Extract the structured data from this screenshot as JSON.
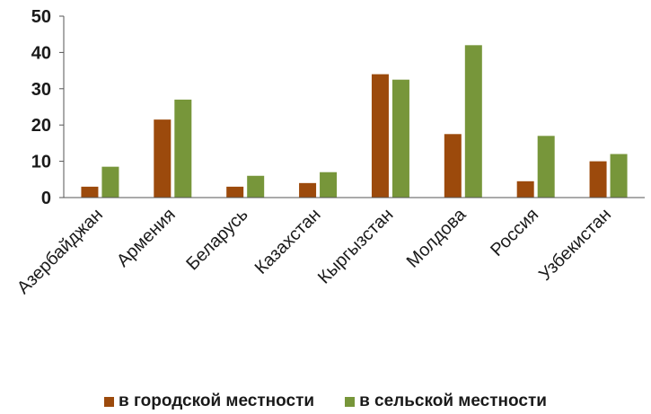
{
  "chart_data": {
    "type": "bar",
    "title": "",
    "xlabel": "",
    "ylabel": "",
    "ylim": [
      0,
      50
    ],
    "yticks": [
      0,
      10,
      20,
      30,
      40,
      50
    ],
    "grid": false,
    "legend_position": "bottom",
    "categories": [
      "Азербайджан",
      "Армения",
      "Беларусь",
      "Казахстан",
      "Кыргызстан",
      "Молдова",
      "Россия",
      "Узбекистан"
    ],
    "series": [
      {
        "name": "в городской местности",
        "color": "#9c4a0c",
        "values": [
          3,
          21.5,
          3,
          4,
          34,
          17.5,
          4.5,
          10
        ]
      },
      {
        "name": "в сельской местности",
        "color": "#77963a",
        "values": [
          8.5,
          27,
          6,
          7,
          32.5,
          42,
          17,
          12
        ]
      }
    ]
  }
}
